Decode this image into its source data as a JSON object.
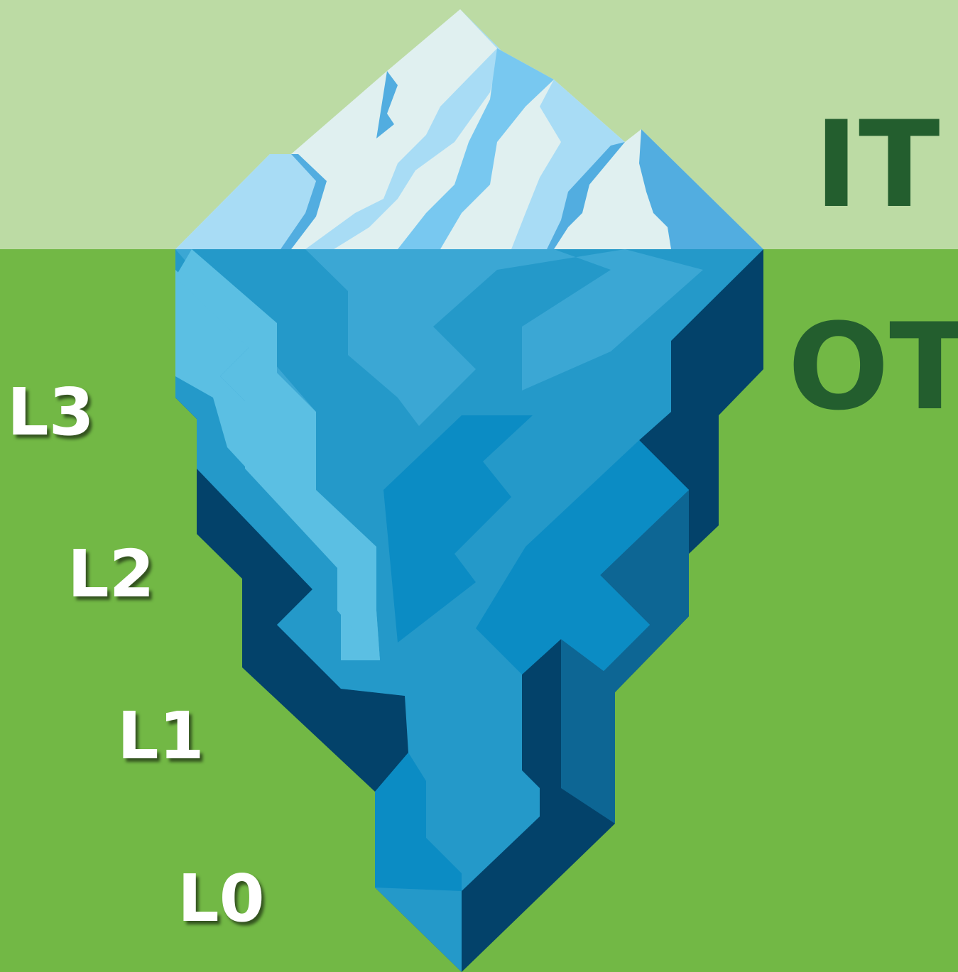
{
  "labels": {
    "it": "IT",
    "ot": "OT",
    "levels": [
      "L3",
      "L2",
      "L1",
      "L0"
    ]
  }
}
